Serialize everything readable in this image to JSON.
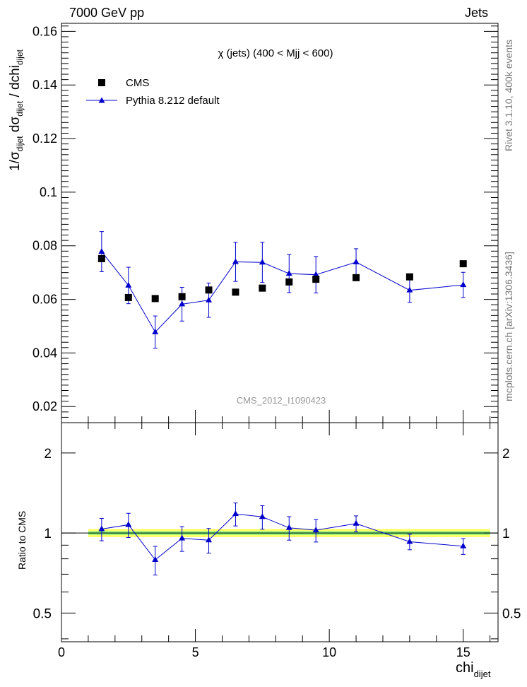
{
  "header": {
    "left_label": "7000 GeV pp",
    "right_label": "Jets"
  },
  "side_labels": {
    "rivet": "Rivet 3.1.10,  400k events",
    "mcplots": "mcplots.cern.ch [arXiv:1306.3436]"
  },
  "colors": {
    "mc": "#0000cc",
    "data": "#000000",
    "band_inner": "#7ff07f",
    "band_outer": "#ffff66",
    "watermark": "#999999",
    "side_text": "#777777"
  },
  "chart_data": [
    {
      "type": "scatter",
      "title": "χ (jets) (400 < Mjj <  600)",
      "watermark": "CMS_2012_I1090423",
      "xlabel": "chi",
      "xlabel_sub": "dijet",
      "ylabel": "1/σdijet dσdijet / dchidijet",
      "xlim": [
        0,
        16.3
      ],
      "ylim": [
        0.014,
        0.163
      ],
      "yticks": [
        0.02,
        0.04,
        0.06,
        0.08,
        0.1,
        0.12,
        0.14,
        0.16
      ],
      "ytick_labels": [
        "0.02",
        "0.04",
        "0.06",
        "0.08",
        "0.1",
        "0.12",
        "0.14",
        "0.16"
      ],
      "legend": [
        "CMS",
        "Pythia 8.212 default"
      ],
      "legend_position": "top-left",
      "series": [
        {
          "name": "CMS",
          "marker": "square",
          "x": [
            1.5,
            2.5,
            3.5,
            4.5,
            5.5,
            6.5,
            7.5,
            8.5,
            9.5,
            11,
            13,
            15
          ],
          "y": [
            0.0752,
            0.0607,
            0.0603,
            0.061,
            0.0635,
            0.0627,
            0.0642,
            0.0665,
            0.0675,
            0.0681,
            0.0684,
            0.0733
          ]
        },
        {
          "name": "Pythia 8.212 default",
          "marker": "triangle",
          "x": [
            1.5,
            2.5,
            3.5,
            4.5,
            5.5,
            6.5,
            7.5,
            8.5,
            9.5,
            11,
            13,
            15
          ],
          "y": [
            0.0778,
            0.0652,
            0.0478,
            0.0582,
            0.0597,
            0.074,
            0.0738,
            0.0696,
            0.0692,
            0.0739,
            0.0634,
            0.0654
          ],
          "yerr": [
            0.0075,
            0.0068,
            0.006,
            0.0063,
            0.0064,
            0.0073,
            0.0075,
            0.0071,
            0.0068,
            0.005,
            0.0045,
            0.0047
          ]
        }
      ]
    },
    {
      "type": "scatter",
      "title": "",
      "xlabel": "chi",
      "xlabel_sub": "dijet",
      "ylabel": "Ratio to CMS",
      "xlim": [
        0,
        16.3
      ],
      "ylim": [
        0.39,
        2.6
      ],
      "yscale": "log",
      "xticks": [
        0,
        5,
        10,
        15
      ],
      "xtick_labels": [
        "0",
        "5",
        "10",
        "15"
      ],
      "yticks": [
        0.5,
        1,
        2
      ],
      "ytick_labels": [
        "0.5",
        "1",
        "2"
      ],
      "reference_band": {
        "x": [
          1,
          16
        ],
        "inner": [
          0.985,
          1.015
        ],
        "outer": [
          0.965,
          1.035
        ]
      },
      "series": [
        {
          "name": "Pythia 8.212 default",
          "marker": "triangle",
          "x": [
            1.5,
            2.5,
            3.5,
            4.5,
            5.5,
            6.5,
            7.5,
            8.5,
            9.5,
            11,
            13,
            15
          ],
          "y": [
            1.035,
            1.074,
            0.793,
            0.955,
            0.94,
            1.18,
            1.15,
            1.046,
            1.025,
            1.085,
            0.927,
            0.892
          ],
          "yerr": [
            0.1,
            0.112,
            0.098,
            0.102,
            0.1,
            0.117,
            0.117,
            0.106,
            0.1,
            0.075,
            0.062,
            0.061
          ]
        }
      ]
    }
  ]
}
